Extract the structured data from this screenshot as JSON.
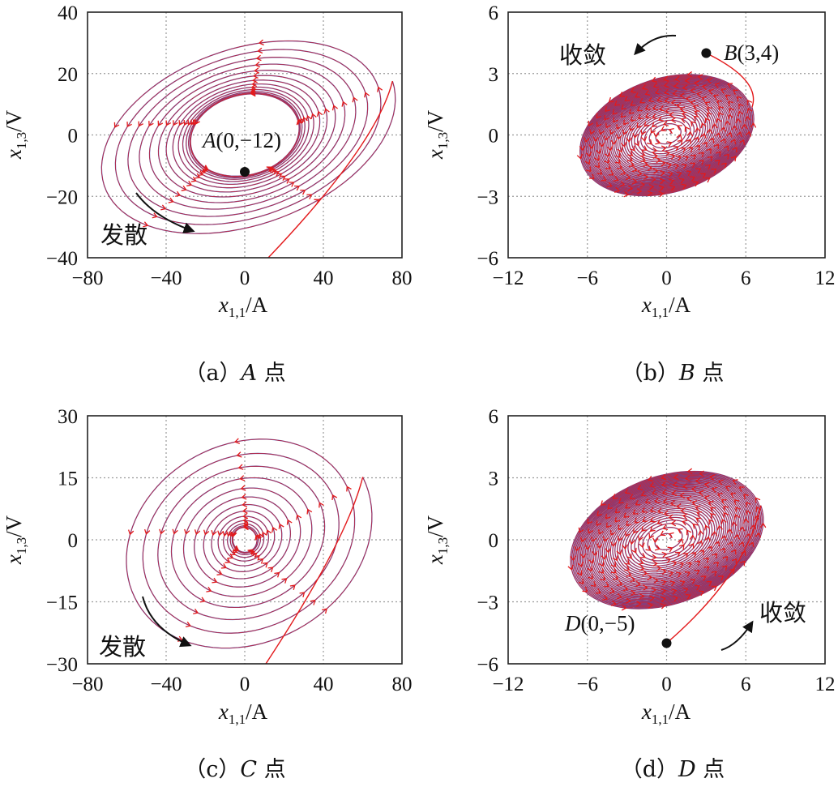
{
  "chart_data": [
    {
      "type": "line",
      "panel": "a",
      "caption": "（a）A 点",
      "caption_prefix": "（a）",
      "caption_point": "A",
      "caption_suffix": " 点",
      "xlabel_main": "x",
      "xlabel_sub": "1,1",
      "xlabel_unit": "/A",
      "ylabel_main": "x",
      "ylabel_sub": "1,3",
      "ylabel_unit": "/V",
      "xlim": [
        -80,
        80
      ],
      "ylim": [
        -40,
        40
      ],
      "xticks": [
        -80,
        -40,
        0,
        40,
        80
      ],
      "yticks": [
        -40,
        -20,
        0,
        20,
        40
      ],
      "xtick_labels": [
        "−80",
        "−40",
        "0",
        "40",
        "80"
      ],
      "ytick_labels": [
        "−40",
        "−20",
        "0",
        "20",
        "40"
      ],
      "grid": true,
      "start_point": {
        "label": "A(0,−12)",
        "label_prefix": "A",
        "label_coords": "(0,−12)",
        "x": 0,
        "y": -12
      },
      "annotation": "发散",
      "behavior": "diverge",
      "inner_limit": {
        "rx": 28,
        "ry": 13,
        "tilt_deg": -15
      },
      "outer_limit": {
        "rx": 80,
        "ry": 30,
        "tilt_deg": -20
      },
      "annotation_pos": "bottom-left",
      "colors": {
        "trajectory": "#4a56b8",
        "arrows": "#e31a1c"
      }
    },
    {
      "type": "line",
      "panel": "b",
      "caption": "（b）B 点",
      "caption_prefix": "（b）",
      "caption_point": "B",
      "caption_suffix": " 点",
      "xlabel_main": "x",
      "xlabel_sub": "1,1",
      "xlabel_unit": "/A",
      "ylabel_main": "x",
      "ylabel_sub": "1,3",
      "ylabel_unit": "/V",
      "xlim": [
        -12,
        12
      ],
      "ylim": [
        -6,
        6
      ],
      "xticks": [
        -12,
        -6,
        0,
        6,
        12
      ],
      "yticks": [
        -6,
        -3,
        0,
        3,
        6
      ],
      "xtick_labels": [
        "−12",
        "−6",
        "0",
        "6",
        "12"
      ],
      "ytick_labels": [
        "−6",
        "−3",
        "0",
        "3",
        "6"
      ],
      "grid": true,
      "start_point": {
        "label": "B(3,4)",
        "label_prefix": "B",
        "label_coords": "(3,4)",
        "x": 3,
        "y": 4
      },
      "annotation": "收敛",
      "behavior": "converge",
      "outer_limit": {
        "rx": 6.8,
        "ry": 2.8,
        "tilt_deg": -18
      },
      "annotation_pos": "top-left",
      "colors": {
        "trajectory": "#4a56b8",
        "arrows": "#e31a1c"
      }
    },
    {
      "type": "line",
      "panel": "c",
      "caption": "（c）C 点",
      "caption_prefix": "（c）",
      "caption_point": "C",
      "caption_suffix": " 点",
      "xlabel_main": "x",
      "xlabel_sub": "1,1",
      "xlabel_unit": "/A",
      "ylabel_main": "x",
      "ylabel_sub": "1,3",
      "ylabel_unit": "/V",
      "xlim": [
        -80,
        80
      ],
      "ylim": [
        -30,
        30
      ],
      "xticks": [
        -80,
        -40,
        0,
        40,
        80
      ],
      "yticks": [
        -30,
        -15,
        0,
        15,
        30
      ],
      "xtick_labels": [
        "−80",
        "−40",
        "0",
        "40",
        "80"
      ],
      "ytick_labels": [
        "−30",
        "−15",
        "0",
        "15",
        "30"
      ],
      "grid": true,
      "annotation": "发散",
      "behavior": "diverge",
      "inner_limit": {
        "rx": 6,
        "ry": 3,
        "tilt_deg": -20
      },
      "outer_limit": {
        "rx": 68,
        "ry": 26,
        "tilt_deg": -28
      },
      "annotation_pos": "bottom-left",
      "colors": {
        "trajectory": "#4a56b8",
        "arrows": "#e31a1c"
      }
    },
    {
      "type": "line",
      "panel": "d",
      "caption": "（d）D 点",
      "caption_prefix": "（d）",
      "caption_point": "D",
      "caption_suffix": " 点",
      "xlabel_main": "x",
      "xlabel_sub": "1,1",
      "xlabel_unit": "/A",
      "ylabel_main": "x",
      "ylabel_sub": "1,3",
      "ylabel_unit": "/V",
      "xlim": [
        -12,
        12
      ],
      "ylim": [
        -6,
        6
      ],
      "xticks": [
        -12,
        -6,
        0,
        6,
        12
      ],
      "yticks": [
        -6,
        -3,
        0,
        3,
        6
      ],
      "xtick_labels": [
        "−12",
        "−6",
        "0",
        "6",
        "12"
      ],
      "ytick_labels": [
        "−6",
        "−3",
        "0",
        "3",
        "6"
      ],
      "grid": true,
      "start_point": {
        "label": "D(0,−5)",
        "label_prefix": "D",
        "label_coords": "(0,−5)",
        "x": 0,
        "y": -5
      },
      "annotation": "收敛",
      "behavior": "converge",
      "outer_limit": {
        "rx": 7.6,
        "ry": 3.1,
        "tilt_deg": -20
      },
      "annotation_pos": "bottom-right",
      "colors": {
        "trajectory": "#4a56b8",
        "arrows": "#e31a1c"
      }
    }
  ]
}
